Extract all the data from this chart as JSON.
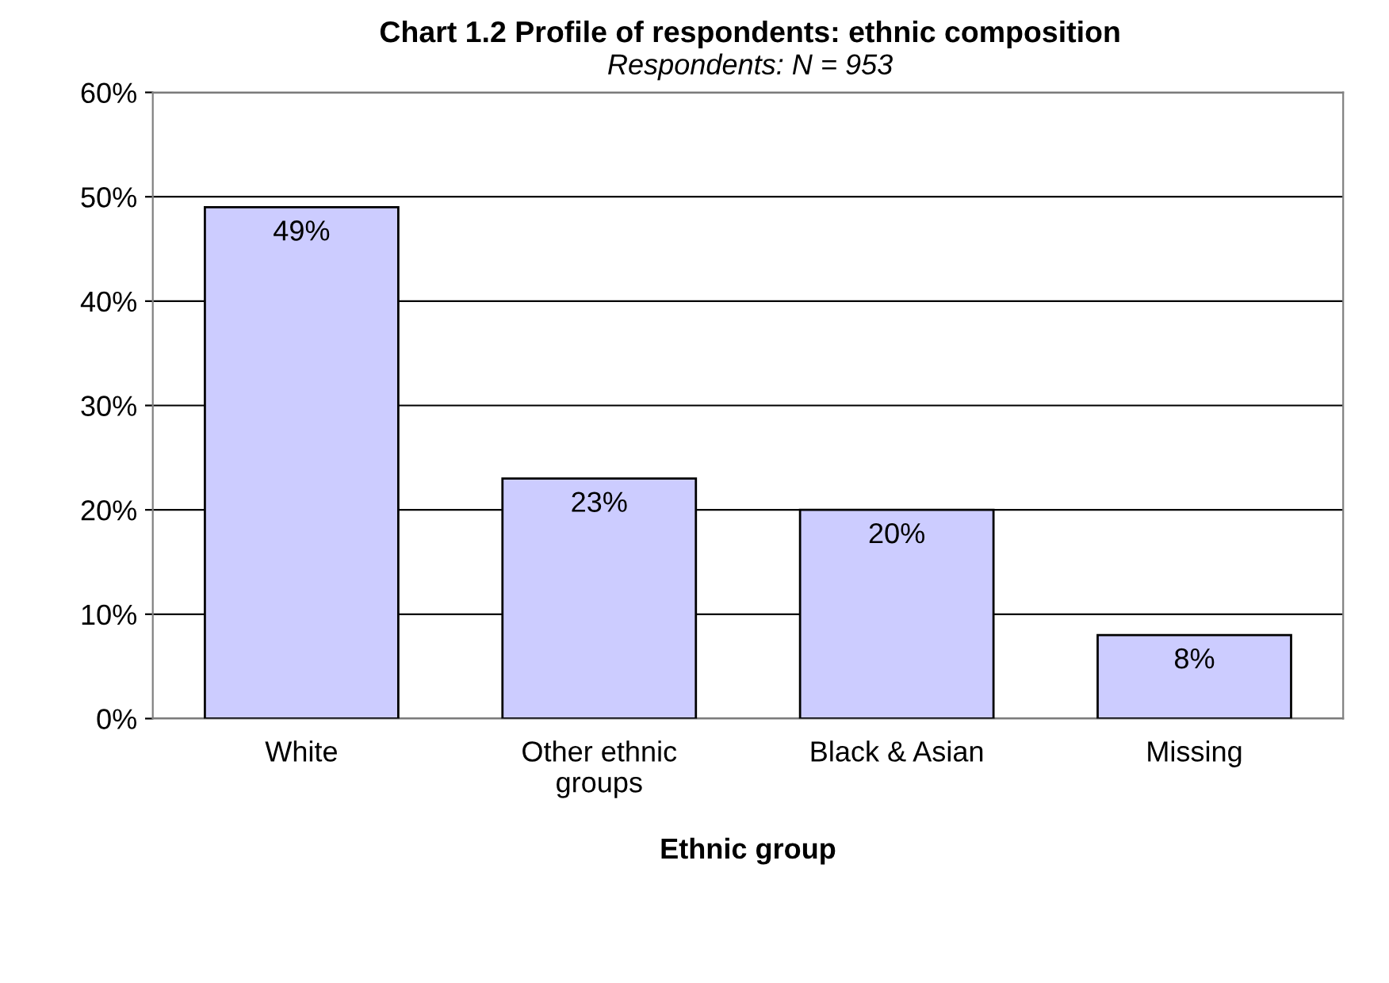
{
  "chart_data": {
    "type": "bar",
    "title": "Chart 1.2 Profile of respondents: ethnic composition",
    "subtitle": "Respondents: N = 953",
    "categories": [
      "White",
      "Other ethnic groups",
      "Black & Asian",
      "Missing"
    ],
    "values": [
      49,
      23,
      20,
      8
    ],
    "value_labels": [
      "49%",
      "23%",
      "20%",
      "8%"
    ],
    "color": "#ccccff",
    "xlabel": "Ethnic group",
    "ylim": [
      0,
      60
    ],
    "yticks": [
      {
        "value": 0,
        "label": "0%"
      },
      {
        "value": 10,
        "label": "10%"
      },
      {
        "value": 20,
        "label": "20%"
      },
      {
        "value": 30,
        "label": "30%"
      },
      {
        "value": 40,
        "label": "40%"
      },
      {
        "value": 50,
        "label": "50%"
      },
      {
        "value": 60,
        "label": "60%"
      }
    ],
    "grid": "y",
    "legend": false
  }
}
